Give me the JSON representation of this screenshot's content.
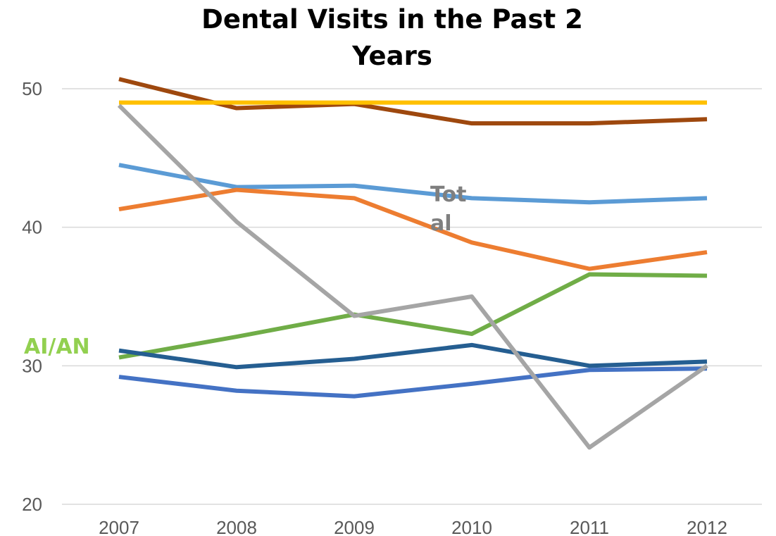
{
  "chart_data": {
    "type": "line",
    "title_lines": [
      "Dental Visits in the Past 2",
      "Years"
    ],
    "categories": [
      "2007",
      "2008",
      "2009",
      "2010",
      "2011",
      "2012"
    ],
    "ylim": [
      20,
      50
    ],
    "yticks": [
      20,
      30,
      40,
      50
    ],
    "ytick_labels": [
      "20",
      "30",
      "40",
      "50"
    ],
    "grid": true,
    "legend": "none",
    "series": [
      {
        "name": "",
        "color": "#9e480e",
        "values": [
          50.7,
          48.6,
          48.9,
          47.5,
          47.5,
          47.8
        ]
      },
      {
        "name": "",
        "color": "#ffc000",
        "values": [
          49.0,
          49.0,
          49.0,
          49.0,
          49.0,
          49.0
        ]
      },
      {
        "name": "",
        "color": "#5b9bd5",
        "values": [
          44.5,
          42.9,
          43.0,
          42.1,
          41.8,
          42.1
        ]
      },
      {
        "name": "",
        "color": "#ed7d31",
        "values": [
          41.3,
          42.7,
          42.1,
          38.9,
          37.0,
          38.2
        ]
      },
      {
        "name": "AI/AN",
        "color": "#70ad47",
        "values": [
          30.6,
          32.1,
          33.7,
          32.3,
          36.6,
          36.5
        ]
      },
      {
        "name": "",
        "color": "#255e91",
        "values": [
          31.1,
          29.9,
          30.5,
          31.5,
          30.0,
          30.3
        ]
      },
      {
        "name": "",
        "color": "#4472c4",
        "values": [
          29.2,
          28.2,
          27.8,
          28.7,
          29.7,
          29.8
        ]
      },
      {
        "name": "Total",
        "color": "#a5a5a5",
        "values": [
          48.8,
          40.4,
          33.6,
          35.0,
          24.1,
          30.0
        ]
      }
    ],
    "annotations": [
      {
        "text": "AI/AN",
        "color": "#92d050"
      },
      {
        "text_lines": [
          "Tot",
          "al"
        ],
        "color": "#7f7f7f"
      }
    ]
  }
}
